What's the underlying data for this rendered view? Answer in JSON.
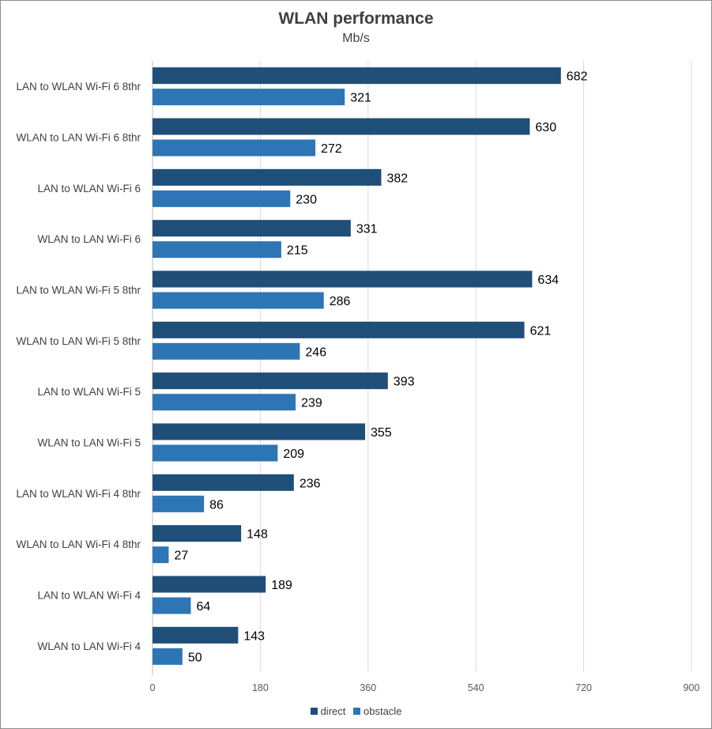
{
  "chart_data": {
    "type": "bar",
    "orientation": "horizontal",
    "title": "WLAN performance",
    "subtitle": "Mb/s",
    "xlabel": "",
    "ylabel": "",
    "xlim": [
      0,
      900
    ],
    "ticks": [
      0,
      180,
      360,
      540,
      720,
      900
    ],
    "tick_labels": [
      "0",
      "180",
      "360",
      "540",
      "720",
      "900"
    ],
    "grid": true,
    "legend_position": "bottom",
    "categories": [
      "LAN to WLAN Wi-Fi 6 8thr",
      "WLAN to LAN Wi-Fi 6 8thr",
      "LAN to WLAN Wi-Fi 6",
      "WLAN to LAN Wi-Fi 6",
      "LAN to WLAN Wi-Fi 5 8thr",
      "WLAN to LAN Wi-Fi 5 8thr",
      "LAN to WLAN Wi-Fi 5",
      "WLAN to LAN Wi-Fi 5",
      "LAN to WLAN Wi-Fi 4 8thr",
      "WLAN to LAN Wi-Fi 4 8thr",
      "LAN to WLAN Wi-Fi 4",
      "WLAN to LAN Wi-Fi 4"
    ],
    "series": [
      {
        "name": "direct",
        "color": "#1f4e79",
        "values": [
          682,
          630,
          382,
          331,
          634,
          621,
          393,
          355,
          236,
          148,
          189,
          143
        ]
      },
      {
        "name": "obstacle",
        "color": "#2e75b6",
        "values": [
          321,
          272,
          230,
          215,
          286,
          246,
          239,
          209,
          86,
          27,
          64,
          50
        ]
      }
    ]
  }
}
